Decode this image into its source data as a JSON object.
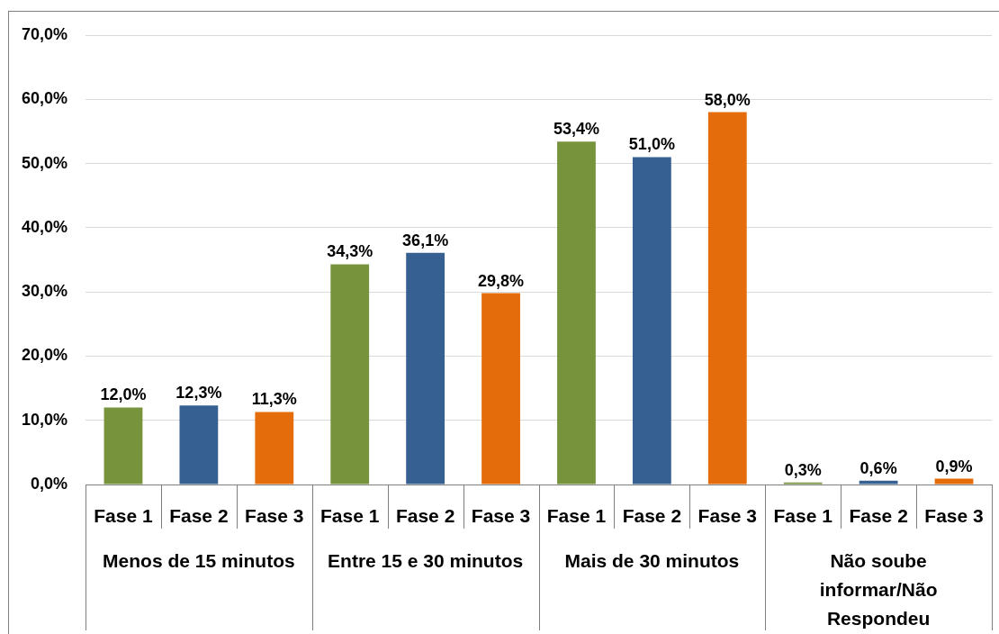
{
  "chart_data": {
    "type": "bar",
    "categories": [
      "Menos de 15 minutos",
      "Entre 15 e 30 minutos",
      "Mais de 30 minutos",
      "Não soube informar/Não Respondeu"
    ],
    "series": [
      {
        "name": "Fase 1",
        "color": "#77933c",
        "values": [
          12.0,
          34.3,
          53.4,
          0.3
        ],
        "value_labels": [
          "12,0%",
          "34,3%",
          "53,4%",
          "0,3%"
        ]
      },
      {
        "name": "Fase 2",
        "color": "#376092",
        "values": [
          12.3,
          36.1,
          51.0,
          0.6
        ],
        "value_labels": [
          "12,3%",
          "36,1%",
          "51,0%",
          "0,6%"
        ]
      },
      {
        "name": "Fase 3",
        "color": "#e46c0a",
        "values": [
          11.3,
          29.8,
          58.0,
          0.9
        ],
        "value_labels": [
          "11,3%",
          "29,8%",
          "58,0%",
          "0,9%"
        ]
      }
    ],
    "ylim": [
      0,
      70
    ],
    "yticks": [
      {
        "value": 0,
        "label": "0,0%"
      },
      {
        "value": 10,
        "label": "10,0%"
      },
      {
        "value": 20,
        "label": "20,0%"
      },
      {
        "value": 30,
        "label": "30,0%"
      },
      {
        "value": 40,
        "label": "40,0%"
      },
      {
        "value": 50,
        "label": "50,0%"
      },
      {
        "value": 60,
        "label": "60,0%"
      },
      {
        "value": 70,
        "label": "70,0%"
      }
    ],
    "grid": "y"
  }
}
